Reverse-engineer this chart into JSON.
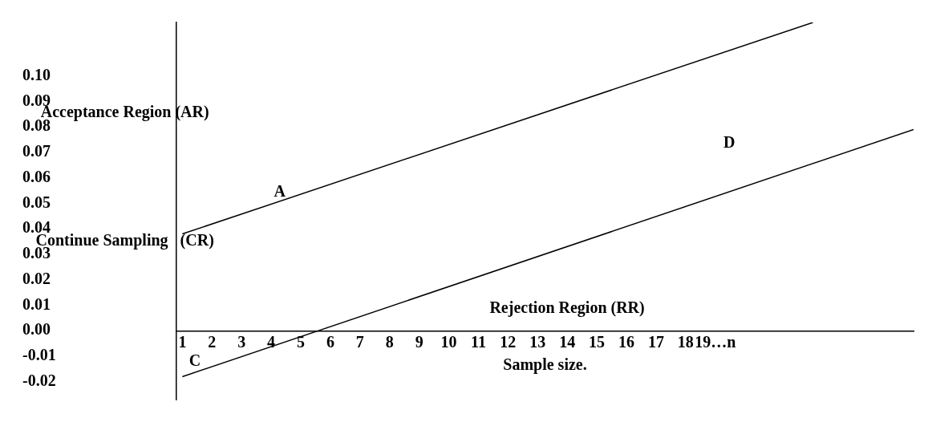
{
  "chart_data": {
    "type": "line",
    "xlabel": "Sample size.",
    "series": [
      {
        "color": "#000000",
        "x": [
          1,
          22.3
        ],
        "values": [
          0.038,
          0.121
        ]
      },
      {
        "color": "#000000",
        "x": [
          1,
          25.7
        ],
        "values": [
          -0.018,
          0.079
        ]
      }
    ],
    "xlim": [
      0.8,
      25.7
    ],
    "ylim": [
      -0.027,
      0.121
    ],
    "xticks": [
      1,
      2,
      3,
      4,
      5,
      6,
      7,
      8,
      9,
      10,
      11,
      12,
      13,
      14,
      15,
      16,
      17,
      18,
      {
        "value": 19,
        "label": "19…n"
      }
    ],
    "yticks": [
      -0.02,
      -0.01,
      {
        "value": 0,
        "label": "0.00"
      },
      0.01,
      0.02,
      0.03,
      0.04,
      0.05,
      0.06,
      0.07,
      0.08,
      0.09,
      {
        "value": 0.1,
        "label": "0.10"
      }
    ],
    "grid": false,
    "legend": false,
    "marker": "none",
    "line_style": "solid",
    "annotations": [
      "Acceptance Region (AR)",
      "Continue Sampling   (CR)",
      "Rejection Region (RR)",
      "A",
      "C",
      "D"
    ]
  }
}
